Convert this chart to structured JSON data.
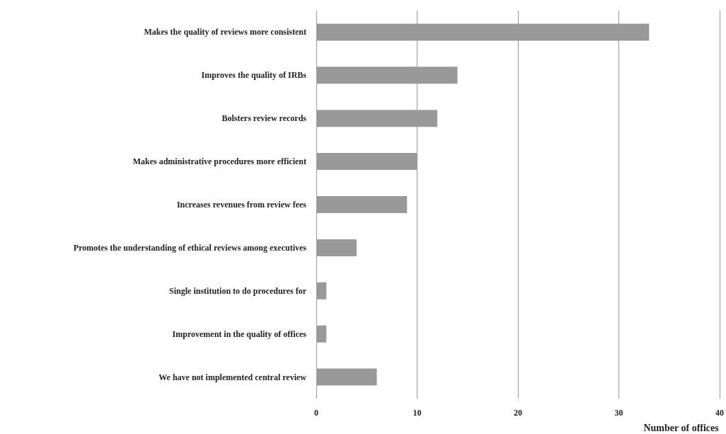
{
  "chart_data": {
    "type": "bar",
    "orientation": "horizontal",
    "xlabel": "Number of offices",
    "categories": [
      "Makes the quality of reviews more consistent",
      "Improves the quality of IRBs",
      "Bolsters review records",
      "Makes administrative procedures more efficient",
      "Increases revenues from review fees",
      "Promotes the understanding of ethical reviews among executives",
      "Single institution to do procedures for",
      "Improvement in the quality of offices",
      "We have not implemented central review"
    ],
    "values": [
      33,
      14,
      12,
      10,
      9,
      4,
      1,
      1,
      6
    ],
    "color": "#999999",
    "xlim": [
      0,
      40
    ],
    "xticks": [
      0,
      10,
      20,
      30,
      40
    ],
    "grid": "x"
  }
}
